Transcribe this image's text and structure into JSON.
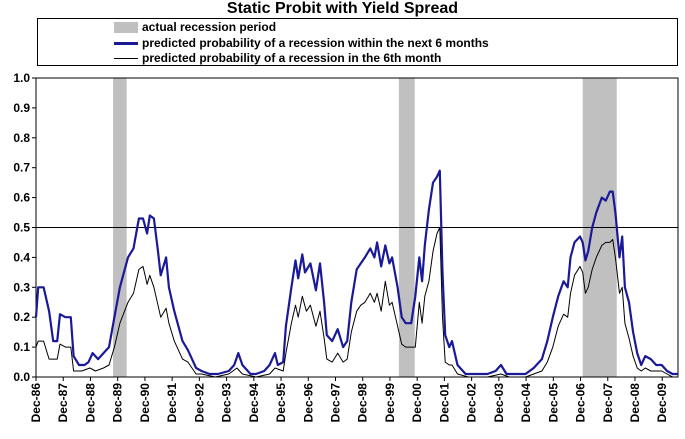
{
  "chart_data": {
    "type": "line",
    "title": "Static Probit with Yield Spread",
    "xlabel": "",
    "ylabel": "",
    "ylim": [
      0,
      1.0
    ],
    "yticks": [
      "0.0",
      "0.1",
      "0.2",
      "0.3",
      "0.4",
      "0.5",
      "0.6",
      "0.7",
      "0.8",
      "0.9",
      "1.0"
    ],
    "xticks": [
      "Dec-86",
      "Dec-87",
      "Dec-88",
      "Dec-89",
      "Dec-90",
      "Dec-91",
      "Dec-92",
      "Dec-93",
      "Dec-94",
      "Dec-95",
      "Dec-96",
      "Dec-97",
      "Dec-98",
      "Dec-99",
      "Dec-00",
      "Dec-01",
      "Dec-02",
      "Dec-03",
      "Dec-04",
      "Dec-05",
      "Dec-06",
      "Dec-07",
      "Dec-08",
      "Dec-09"
    ],
    "x_range_years": [
      1986.92,
      2010.5
    ],
    "threshold": 0.5,
    "legend": [
      {
        "label": "actual recession period",
        "color": "#c0c0c0",
        "style": "bar"
      },
      {
        "label": "predicted probability of a recession within the next 6 months",
        "color": "#1a1a99",
        "style": "thick-line"
      },
      {
        "label": "predicted probability of a recession in the 6th month",
        "color": "#000000",
        "style": "thin-line"
      }
    ],
    "recessions": [
      {
        "start": 1989.75,
        "end": 1990.25
      },
      {
        "start": 2000.25,
        "end": 2000.83
      },
      {
        "start": 2007.0,
        "end": 2008.25
      }
    ],
    "series": [
      {
        "name": "predicted probability of a recession within the next 6 months",
        "color": "#1a1a99",
        "points": [
          [
            1986.92,
            0.2
          ],
          [
            1987.0,
            0.3
          ],
          [
            1987.2,
            0.3
          ],
          [
            1987.4,
            0.22
          ],
          [
            1987.55,
            0.12
          ],
          [
            1987.7,
            0.12
          ],
          [
            1987.8,
            0.21
          ],
          [
            1988.0,
            0.2
          ],
          [
            1988.2,
            0.2
          ],
          [
            1988.3,
            0.07
          ],
          [
            1988.5,
            0.04
          ],
          [
            1988.7,
            0.04
          ],
          [
            1988.85,
            0.05
          ],
          [
            1989.0,
            0.08
          ],
          [
            1989.2,
            0.06
          ],
          [
            1989.4,
            0.08
          ],
          [
            1989.6,
            0.1
          ],
          [
            1989.8,
            0.2
          ],
          [
            1990.0,
            0.3
          ],
          [
            1990.3,
            0.4
          ],
          [
            1990.5,
            0.43
          ],
          [
            1990.7,
            0.53
          ],
          [
            1990.85,
            0.53
          ],
          [
            1991.0,
            0.48
          ],
          [
            1991.1,
            0.54
          ],
          [
            1991.25,
            0.53
          ],
          [
            1991.4,
            0.42
          ],
          [
            1991.5,
            0.34
          ],
          [
            1991.7,
            0.4
          ],
          [
            1991.8,
            0.3
          ],
          [
            1992.0,
            0.22
          ],
          [
            1992.3,
            0.12
          ],
          [
            1992.5,
            0.09
          ],
          [
            1992.8,
            0.03
          ],
          [
            1993.0,
            0.02
          ],
          [
            1993.3,
            0.01
          ],
          [
            1993.6,
            0.01
          ],
          [
            1994.0,
            0.02
          ],
          [
            1994.2,
            0.04
          ],
          [
            1994.35,
            0.08
          ],
          [
            1994.5,
            0.04
          ],
          [
            1994.8,
            0.01
          ],
          [
            1995.0,
            0.01
          ],
          [
            1995.3,
            0.02
          ],
          [
            1995.5,
            0.04
          ],
          [
            1995.7,
            0.08
          ],
          [
            1995.8,
            0.04
          ],
          [
            1996.0,
            0.05
          ],
          [
            1996.1,
            0.17
          ],
          [
            1996.3,
            0.3
          ],
          [
            1996.45,
            0.39
          ],
          [
            1996.55,
            0.33
          ],
          [
            1996.7,
            0.41
          ],
          [
            1996.8,
            0.35
          ],
          [
            1997.0,
            0.38
          ],
          [
            1997.2,
            0.29
          ],
          [
            1997.35,
            0.38
          ],
          [
            1997.5,
            0.25
          ],
          [
            1997.6,
            0.14
          ],
          [
            1997.8,
            0.12
          ],
          [
            1998.0,
            0.16
          ],
          [
            1998.2,
            0.1
          ],
          [
            1998.35,
            0.12
          ],
          [
            1998.5,
            0.25
          ],
          [
            1998.7,
            0.36
          ],
          [
            1998.85,
            0.38
          ],
          [
            1999.0,
            0.4
          ],
          [
            1999.2,
            0.43
          ],
          [
            1999.35,
            0.4
          ],
          [
            1999.45,
            0.45
          ],
          [
            1999.6,
            0.37
          ],
          [
            1999.75,
            0.44
          ],
          [
            1999.9,
            0.38
          ],
          [
            2000.0,
            0.4
          ],
          [
            2000.2,
            0.3
          ],
          [
            2000.35,
            0.2
          ],
          [
            2000.5,
            0.18
          ],
          [
            2000.7,
            0.18
          ],
          [
            2000.85,
            0.27
          ],
          [
            2001.0,
            0.4
          ],
          [
            2001.1,
            0.32
          ],
          [
            2001.2,
            0.44
          ],
          [
            2001.35,
            0.56
          ],
          [
            2001.5,
            0.65
          ],
          [
            2001.65,
            0.67
          ],
          [
            2001.75,
            0.69
          ],
          [
            2001.85,
            0.35
          ],
          [
            2001.95,
            0.14
          ],
          [
            2002.1,
            0.1
          ],
          [
            2002.2,
            0.12
          ],
          [
            2002.4,
            0.04
          ],
          [
            2002.7,
            0.01
          ],
          [
            2003.0,
            0.01
          ],
          [
            2003.3,
            0.01
          ],
          [
            2003.5,
            0.01
          ],
          [
            2003.8,
            0.02
          ],
          [
            2004.0,
            0.04
          ],
          [
            2004.2,
            0.01
          ],
          [
            2004.5,
            0.01
          ],
          [
            2004.9,
            0.01
          ],
          [
            2005.2,
            0.03
          ],
          [
            2005.5,
            0.06
          ],
          [
            2005.7,
            0.12
          ],
          [
            2005.9,
            0.2
          ],
          [
            2006.1,
            0.27
          ],
          [
            2006.3,
            0.32
          ],
          [
            2006.45,
            0.3
          ],
          [
            2006.55,
            0.4
          ],
          [
            2006.7,
            0.45
          ],
          [
            2006.9,
            0.47
          ],
          [
            2007.0,
            0.45
          ],
          [
            2007.1,
            0.39
          ],
          [
            2007.2,
            0.42
          ],
          [
            2007.35,
            0.5
          ],
          [
            2007.5,
            0.55
          ],
          [
            2007.7,
            0.6
          ],
          [
            2007.85,
            0.59
          ],
          [
            2008.0,
            0.62
          ],
          [
            2008.1,
            0.62
          ],
          [
            2008.2,
            0.55
          ],
          [
            2008.35,
            0.4
          ],
          [
            2008.45,
            0.47
          ],
          [
            2008.55,
            0.3
          ],
          [
            2008.7,
            0.25
          ],
          [
            2008.85,
            0.15
          ],
          [
            2009.0,
            0.08
          ],
          [
            2009.15,
            0.04
          ],
          [
            2009.3,
            0.07
          ],
          [
            2009.5,
            0.06
          ],
          [
            2009.7,
            0.04
          ],
          [
            2009.9,
            0.04
          ],
          [
            2010.1,
            0.02
          ],
          [
            2010.3,
            0.01
          ],
          [
            2010.5,
            0.01
          ]
        ]
      },
      {
        "name": "predicted probability of a recession in the 6th month",
        "color": "#000000",
        "points": [
          [
            1986.92,
            0.1
          ],
          [
            1987.0,
            0.12
          ],
          [
            1987.2,
            0.12
          ],
          [
            1987.4,
            0.06
          ],
          [
            1987.55,
            0.06
          ],
          [
            1987.7,
            0.06
          ],
          [
            1987.8,
            0.11
          ],
          [
            1988.0,
            0.1
          ],
          [
            1988.2,
            0.1
          ],
          [
            1988.3,
            0.02
          ],
          [
            1988.6,
            0.02
          ],
          [
            1988.9,
            0.03
          ],
          [
            1989.1,
            0.02
          ],
          [
            1989.4,
            0.03
          ],
          [
            1989.6,
            0.04
          ],
          [
            1989.8,
            0.1
          ],
          [
            1990.0,
            0.18
          ],
          [
            1990.3,
            0.25
          ],
          [
            1990.5,
            0.28
          ],
          [
            1990.7,
            0.36
          ],
          [
            1990.85,
            0.37
          ],
          [
            1991.0,
            0.31
          ],
          [
            1991.1,
            0.34
          ],
          [
            1991.25,
            0.3
          ],
          [
            1991.4,
            0.24
          ],
          [
            1991.5,
            0.2
          ],
          [
            1991.7,
            0.23
          ],
          [
            1991.8,
            0.18
          ],
          [
            1992.0,
            0.12
          ],
          [
            1992.3,
            0.06
          ],
          [
            1992.5,
            0.05
          ],
          [
            1992.8,
            0.01
          ],
          [
            1993.0,
            0.01
          ],
          [
            1993.5,
            0.0
          ],
          [
            1994.0,
            0.01
          ],
          [
            1994.3,
            0.03
          ],
          [
            1994.5,
            0.01
          ],
          [
            1995.0,
            0.0
          ],
          [
            1995.5,
            0.01
          ],
          [
            1995.7,
            0.03
          ],
          [
            1996.0,
            0.02
          ],
          [
            1996.1,
            0.08
          ],
          [
            1996.3,
            0.18
          ],
          [
            1996.45,
            0.24
          ],
          [
            1996.55,
            0.2
          ],
          [
            1996.7,
            0.27
          ],
          [
            1996.85,
            0.22
          ],
          [
            1997.0,
            0.24
          ],
          [
            1997.2,
            0.17
          ],
          [
            1997.35,
            0.22
          ],
          [
            1997.5,
            0.13
          ],
          [
            1997.6,
            0.06
          ],
          [
            1997.8,
            0.05
          ],
          [
            1998.0,
            0.08
          ],
          [
            1998.2,
            0.05
          ],
          [
            1998.35,
            0.06
          ],
          [
            1998.5,
            0.15
          ],
          [
            1998.7,
            0.22
          ],
          [
            1998.85,
            0.24
          ],
          [
            1999.0,
            0.25
          ],
          [
            1999.2,
            0.28
          ],
          [
            1999.35,
            0.25
          ],
          [
            1999.45,
            0.28
          ],
          [
            1999.6,
            0.22
          ],
          [
            1999.75,
            0.32
          ],
          [
            1999.9,
            0.24
          ],
          [
            2000.0,
            0.25
          ],
          [
            2000.2,
            0.17
          ],
          [
            2000.35,
            0.11
          ],
          [
            2000.5,
            0.1
          ],
          [
            2000.7,
            0.1
          ],
          [
            2000.85,
            0.1
          ],
          [
            2001.0,
            0.25
          ],
          [
            2001.1,
            0.18
          ],
          [
            2001.2,
            0.27
          ],
          [
            2001.35,
            0.32
          ],
          [
            2001.5,
            0.42
          ],
          [
            2001.65,
            0.48
          ],
          [
            2001.75,
            0.5
          ],
          [
            2001.85,
            0.2
          ],
          [
            2001.95,
            0.05
          ],
          [
            2002.1,
            0.04
          ],
          [
            2002.2,
            0.04
          ],
          [
            2002.4,
            0.01
          ],
          [
            2002.8,
            0.0
          ],
          [
            2003.5,
            0.0
          ],
          [
            2004.0,
            0.01
          ],
          [
            2004.3,
            0.0
          ],
          [
            2004.9,
            0.0
          ],
          [
            2005.2,
            0.01
          ],
          [
            2005.5,
            0.02
          ],
          [
            2005.7,
            0.05
          ],
          [
            2005.9,
            0.1
          ],
          [
            2006.1,
            0.17
          ],
          [
            2006.3,
            0.21
          ],
          [
            2006.45,
            0.2
          ],
          [
            2006.55,
            0.28
          ],
          [
            2006.7,
            0.34
          ],
          [
            2006.9,
            0.37
          ],
          [
            2007.0,
            0.35
          ],
          [
            2007.1,
            0.28
          ],
          [
            2007.2,
            0.3
          ],
          [
            2007.35,
            0.36
          ],
          [
            2007.5,
            0.4
          ],
          [
            2007.7,
            0.44
          ],
          [
            2007.85,
            0.45
          ],
          [
            2008.0,
            0.45
          ],
          [
            2008.1,
            0.46
          ],
          [
            2008.2,
            0.4
          ],
          [
            2008.35,
            0.28
          ],
          [
            2008.45,
            0.3
          ],
          [
            2008.55,
            0.18
          ],
          [
            2008.7,
            0.13
          ],
          [
            2008.85,
            0.07
          ],
          [
            2009.0,
            0.03
          ],
          [
            2009.15,
            0.02
          ],
          [
            2009.3,
            0.03
          ],
          [
            2009.5,
            0.02
          ],
          [
            2009.7,
            0.02
          ],
          [
            2009.9,
            0.02
          ],
          [
            2010.1,
            0.01
          ],
          [
            2010.3,
            0.0
          ],
          [
            2010.5,
            0.0
          ]
        ]
      }
    ]
  }
}
